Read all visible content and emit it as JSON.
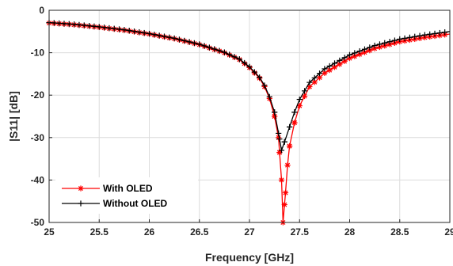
{
  "chart_data": {
    "type": "line",
    "title": "",
    "xlabel": "Frequency [GHz]",
    "ylabel": "|S11| [dB]",
    "xlim": [
      25,
      29
    ],
    "ylim": [
      -50,
      0
    ],
    "xticks": [
      25,
      25.5,
      26,
      26.5,
      27,
      27.5,
      28,
      28.5,
      29
    ],
    "xtick_labels": [
      "25",
      "25.5",
      "26",
      "26.5",
      "27",
      "27.5",
      "28",
      "28.5",
      "29"
    ],
    "yticks": [
      0,
      -10,
      -20,
      -30,
      -40,
      -50
    ],
    "ytick_labels": [
      "0",
      "-10",
      "-20",
      "-30",
      "-40",
      "-50"
    ],
    "grid": true,
    "legend_position": "bottom-left",
    "series": [
      {
        "name": "With OLED",
        "color": "#ff0000",
        "marker": "asterisk",
        "points": [
          [
            25.0,
            -3.0
          ],
          [
            25.25,
            -3.4
          ],
          [
            25.5,
            -4.0
          ],
          [
            25.75,
            -4.7
          ],
          [
            26.0,
            -5.6
          ],
          [
            26.25,
            -6.7
          ],
          [
            26.5,
            -8.1
          ],
          [
            26.75,
            -10.0
          ],
          [
            26.9,
            -11.6
          ],
          [
            27.0,
            -13.5
          ],
          [
            27.1,
            -16.0
          ],
          [
            27.15,
            -18.0
          ],
          [
            27.2,
            -20.8
          ],
          [
            27.25,
            -25.0
          ],
          [
            27.29,
            -30.0
          ],
          [
            27.3,
            -33.5
          ],
          [
            27.32,
            -40.0
          ],
          [
            27.335,
            -50.0
          ],
          [
            27.36,
            -43.0
          ],
          [
            27.38,
            -36.5
          ],
          [
            27.4,
            -32.0
          ],
          [
            27.45,
            -26.5
          ],
          [
            27.5,
            -22.5
          ],
          [
            27.6,
            -18.0
          ],
          [
            27.75,
            -14.8
          ],
          [
            28.0,
            -11.3
          ],
          [
            28.25,
            -9.0
          ],
          [
            28.5,
            -7.4
          ],
          [
            28.75,
            -6.4
          ],
          [
            29.0,
            -5.6
          ]
        ]
      },
      {
        "name": "Without OLED",
        "color": "#000000",
        "marker": "plus",
        "points": [
          [
            25.0,
            -2.9
          ],
          [
            25.25,
            -3.3
          ],
          [
            25.5,
            -3.9
          ],
          [
            25.75,
            -4.6
          ],
          [
            26.0,
            -5.5
          ],
          [
            26.25,
            -6.6
          ],
          [
            26.5,
            -8.0
          ],
          [
            26.75,
            -9.9
          ],
          [
            26.9,
            -11.5
          ],
          [
            27.0,
            -13.3
          ],
          [
            27.1,
            -15.8
          ],
          [
            27.15,
            -17.7
          ],
          [
            27.2,
            -20.4
          ],
          [
            27.25,
            -24.0
          ],
          [
            27.29,
            -29.0
          ],
          [
            27.32,
            -33.0
          ],
          [
            27.35,
            -31.0
          ],
          [
            27.4,
            -27.5
          ],
          [
            27.45,
            -24.0
          ],
          [
            27.5,
            -21.0
          ],
          [
            27.6,
            -17.0
          ],
          [
            27.75,
            -13.8
          ],
          [
            28.0,
            -10.5
          ],
          [
            28.25,
            -8.3
          ],
          [
            28.5,
            -6.8
          ],
          [
            28.75,
            -5.8
          ],
          [
            29.0,
            -5.0
          ]
        ]
      }
    ]
  }
}
